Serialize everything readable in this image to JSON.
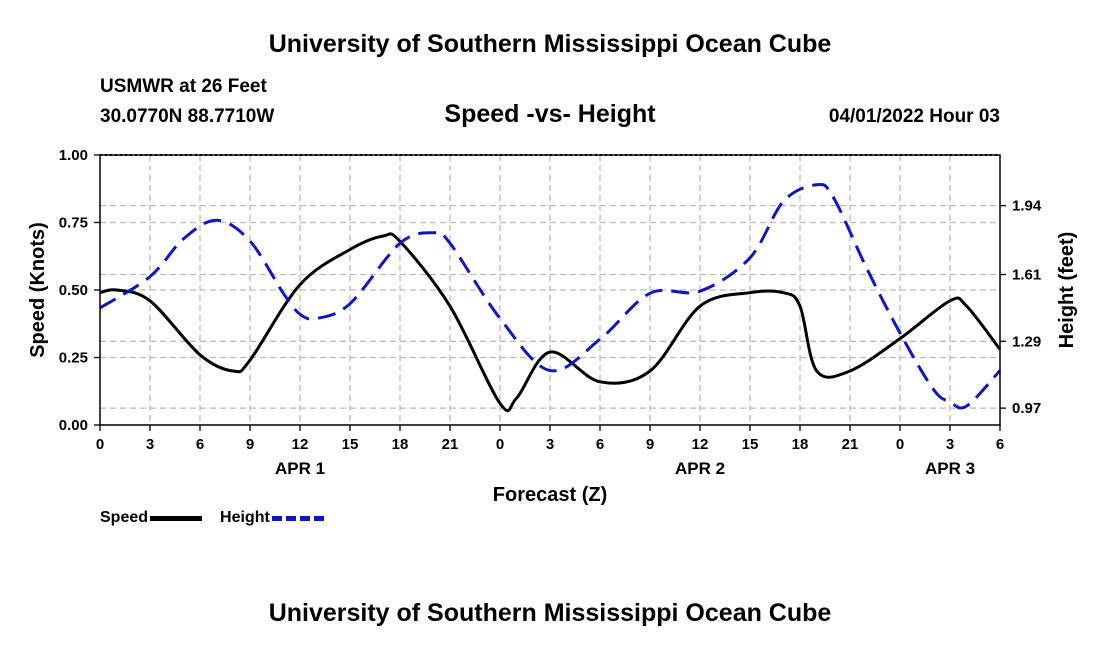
{
  "header": {
    "title": "University of Southern Mississippi Ocean Cube",
    "station": "USMWR at 26 Feet",
    "coordinates": "30.0770N  88.7710W",
    "datetime": "04/01/2022 Hour 03"
  },
  "footer": {
    "title": "University of Southern Mississippi Ocean Cube"
  },
  "legend": {
    "speed_label": "Speed",
    "height_label": "Height"
  },
  "chart_data": {
    "type": "line",
    "title": "Speed -vs- Height",
    "xlabel": "Forecast (Z)",
    "ylabel": "Speed (Knots)",
    "y2label": "Height (feet)",
    "x_range": [
      0,
      54
    ],
    "x_tick_values": [
      0,
      3,
      6,
      9,
      12,
      15,
      18,
      21,
      24,
      27,
      30,
      33,
      36,
      39,
      42,
      45,
      48,
      51,
      54
    ],
    "x_tick_labels": [
      "0",
      "3",
      "6",
      "9",
      "12",
      "15",
      "18",
      "21",
      "0",
      "3",
      "6",
      "9",
      "12",
      "15",
      "18",
      "21",
      "0",
      "3",
      "6"
    ],
    "date_labels": [
      {
        "label": "APR 1",
        "x": 12
      },
      {
        "label": "APR 2",
        "x": 36
      },
      {
        "label": "APR 3",
        "x": 51
      }
    ],
    "ylim": [
      0,
      1.0
    ],
    "y_ticks": [
      "0.00",
      "0.25",
      "0.50",
      "0.75",
      "1.00"
    ],
    "y2_tick_values": [
      0.97,
      1.29,
      1.61,
      1.94
    ],
    "y2_tick_labels": [
      "0.97",
      "1.29",
      "1.61",
      "1.94"
    ],
    "y2_map": {
      "value_a": 0.97,
      "speed_a": 0.0625,
      "value_b": 1.94,
      "speed_b": 0.8125
    },
    "grid": true,
    "colors": {
      "speed": "#000000",
      "height": "#0b17c8",
      "grid": "#bbbbbb"
    },
    "series": [
      {
        "name": "Speed",
        "axis": "left",
        "style": "solid",
        "x": [
          0,
          1,
          3,
          6,
          8,
          9,
          12,
          15,
          17,
          18,
          21,
          24,
          25,
          27,
          30,
          33,
          36,
          39,
          41,
          42,
          43,
          45,
          48,
          51,
          52,
          54
        ],
        "values": [
          0.49,
          0.5,
          0.46,
          0.26,
          0.2,
          0.24,
          0.52,
          0.65,
          0.7,
          0.68,
          0.44,
          0.08,
          0.1,
          0.27,
          0.16,
          0.2,
          0.44,
          0.49,
          0.49,
          0.44,
          0.2,
          0.2,
          0.32,
          0.46,
          0.44,
          0.28
        ]
      },
      {
        "name": "Height",
        "axis": "right",
        "style": "dashed",
        "x": [
          0,
          3,
          5,
          7,
          9,
          11,
          12,
          13,
          15,
          18,
          20,
          21,
          24,
          27,
          30,
          33,
          36,
          39,
          41,
          43,
          44,
          46,
          48,
          50,
          51,
          52,
          54
        ],
        "values": [
          1.45,
          1.6,
          1.78,
          1.87,
          1.77,
          1.52,
          1.42,
          1.4,
          1.47,
          1.76,
          1.81,
          1.76,
          1.4,
          1.15,
          1.3,
          1.52,
          1.53,
          1.69,
          1.96,
          2.04,
          1.98,
          1.64,
          1.33,
          1.06,
          1.0,
          0.98,
          1.15
        ]
      }
    ]
  }
}
